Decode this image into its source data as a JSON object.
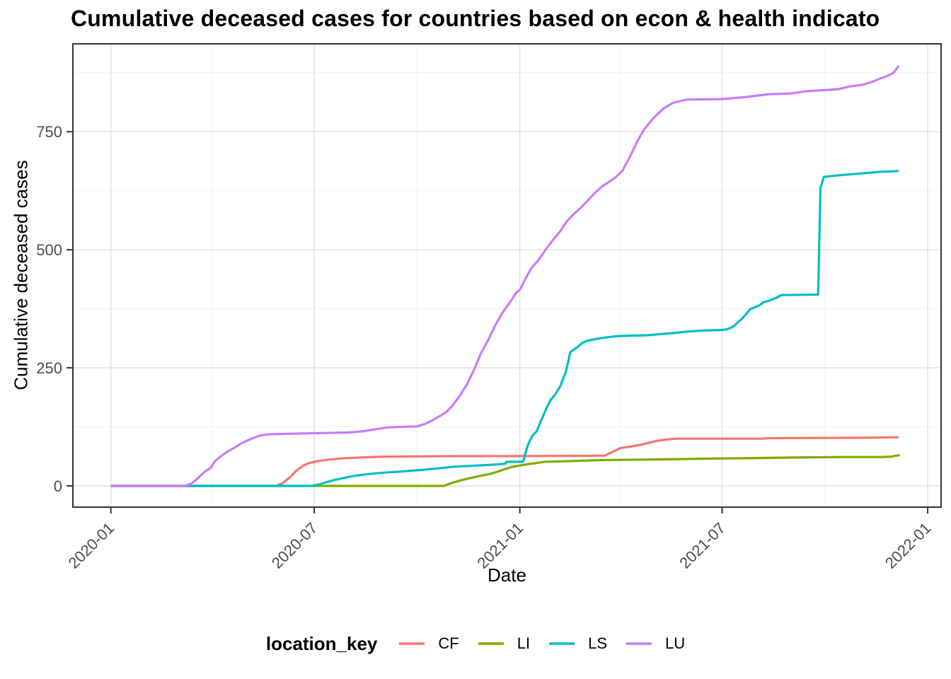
{
  "chart_data": {
    "type": "line",
    "title": "Cumulative deceased cases for countries based on econ & health indicato",
    "xlabel": "Date",
    "ylabel": "Cumulative deceased cases",
    "legend_title": "location_key",
    "legend_position": "bottom",
    "grid": true,
    "x_domain": [
      "2019-11-28",
      "2022-01-13"
    ],
    "y_domain": [
      -45,
      936
    ],
    "x_ticks": [
      {
        "date": "2020-01-01",
        "label": "2020-01"
      },
      {
        "date": "2020-07-01",
        "label": "2020-07"
      },
      {
        "date": "2021-01-01",
        "label": "2021-01"
      },
      {
        "date": "2021-07-01",
        "label": "2021-07"
      },
      {
        "date": "2022-01-01",
        "label": "2022-01"
      }
    ],
    "x_minor_dates": [
      "2020-04-01",
      "2020-10-01",
      "2021-04-01",
      "2021-10-01"
    ],
    "y_ticks": [
      0,
      250,
      500,
      750
    ],
    "y_minor": [
      125,
      375,
      625,
      875
    ],
    "colors": {
      "grid_major": "#e4e4e4",
      "grid_minor": "#f0f0f0",
      "panel_border": "#333333",
      "tick_label": "#4d4d4d"
    },
    "series": [
      {
        "name": "CF",
        "color": "#F8766D",
        "points": [
          [
            "2020-01-01",
            0
          ],
          [
            "2020-05-28",
            0
          ],
          [
            "2020-06-03",
            6
          ],
          [
            "2020-06-07",
            14
          ],
          [
            "2020-06-11",
            22
          ],
          [
            "2020-06-14",
            30
          ],
          [
            "2020-06-18",
            38
          ],
          [
            "2020-06-22",
            44
          ],
          [
            "2020-06-26",
            48
          ],
          [
            "2020-07-03",
            52
          ],
          [
            "2020-07-12",
            55
          ],
          [
            "2020-07-25",
            58
          ],
          [
            "2020-08-10",
            60
          ],
          [
            "2020-09-01",
            62
          ],
          [
            "2020-11-01",
            63
          ],
          [
            "2021-01-01",
            63
          ],
          [
            "2021-03-18",
            64
          ],
          [
            "2021-03-25",
            72
          ],
          [
            "2021-04-01",
            80
          ],
          [
            "2021-04-10",
            83
          ],
          [
            "2021-04-19",
            87
          ],
          [
            "2021-04-26",
            91
          ],
          [
            "2021-05-03",
            95
          ],
          [
            "2021-05-12",
            98
          ],
          [
            "2021-05-21",
            100
          ],
          [
            "2021-08-05",
            100
          ],
          [
            "2021-08-12",
            101
          ],
          [
            "2021-11-08",
            102
          ],
          [
            "2021-12-06",
            103
          ]
        ]
      },
      {
        "name": "LI",
        "color": "#7CAE00",
        "points": [
          [
            "2020-01-01",
            0
          ],
          [
            "2020-10-25",
            0
          ],
          [
            "2020-11-01",
            6
          ],
          [
            "2020-11-08",
            11
          ],
          [
            "2020-11-15",
            15
          ],
          [
            "2020-11-22",
            19
          ],
          [
            "2020-11-28",
            22
          ],
          [
            "2020-12-05",
            25
          ],
          [
            "2020-12-12",
            30
          ],
          [
            "2020-12-18",
            35
          ],
          [
            "2020-12-25",
            40
          ],
          [
            "2021-01-01",
            43
          ],
          [
            "2021-01-08",
            46
          ],
          [
            "2021-01-15",
            48
          ],
          [
            "2021-01-23",
            51
          ],
          [
            "2021-02-10",
            52
          ],
          [
            "2021-03-06",
            54
          ],
          [
            "2021-04-01",
            55
          ],
          [
            "2021-05-01",
            56
          ],
          [
            "2021-06-01",
            57
          ],
          [
            "2021-07-01",
            58
          ],
          [
            "2021-08-01",
            59
          ],
          [
            "2021-09-01",
            60
          ],
          [
            "2021-10-15",
            61
          ],
          [
            "2021-11-20",
            61
          ],
          [
            "2021-11-30",
            62
          ],
          [
            "2021-12-04",
            64
          ],
          [
            "2021-12-07",
            65
          ]
        ]
      },
      {
        "name": "LS",
        "color": "#00BFC4",
        "points": [
          [
            "2020-01-01",
            0
          ],
          [
            "2020-06-28",
            0
          ],
          [
            "2020-07-05",
            3
          ],
          [
            "2020-07-12",
            8
          ],
          [
            "2020-07-20",
            13
          ],
          [
            "2020-07-28",
            17
          ],
          [
            "2020-08-05",
            21
          ],
          [
            "2020-08-18",
            25
          ],
          [
            "2020-09-01",
            28
          ],
          [
            "2020-09-15",
            30
          ],
          [
            "2020-10-01",
            33
          ],
          [
            "2020-10-15",
            36
          ],
          [
            "2020-11-01",
            40
          ],
          [
            "2020-11-15",
            42
          ],
          [
            "2020-12-01",
            44
          ],
          [
            "2020-12-15",
            46
          ],
          [
            "2020-12-19",
            47
          ],
          [
            "2020-12-20",
            51
          ],
          [
            "2021-01-04",
            51
          ],
          [
            "2021-01-06",
            70
          ],
          [
            "2021-01-08",
            85
          ],
          [
            "2021-01-10",
            96
          ],
          [
            "2021-01-12",
            105
          ],
          [
            "2021-01-14",
            111
          ],
          [
            "2021-01-16",
            115
          ],
          [
            "2021-01-19",
            133
          ],
          [
            "2021-01-24",
            160
          ],
          [
            "2021-01-28",
            180
          ],
          [
            "2021-02-02",
            195
          ],
          [
            "2021-02-06",
            210
          ],
          [
            "2021-02-09",
            228
          ],
          [
            "2021-02-11",
            240
          ],
          [
            "2021-02-14",
            270
          ],
          [
            "2021-02-15",
            283
          ],
          [
            "2021-02-18",
            288
          ],
          [
            "2021-02-22",
            295
          ],
          [
            "2021-02-26",
            303
          ],
          [
            "2021-03-02",
            307
          ],
          [
            "2021-03-10",
            311
          ],
          [
            "2021-03-18",
            314
          ],
          [
            "2021-03-28",
            317
          ],
          [
            "2021-04-10",
            318
          ],
          [
            "2021-04-25",
            319
          ],
          [
            "2021-05-05",
            321
          ],
          [
            "2021-05-20",
            324
          ],
          [
            "2021-06-01",
            327
          ],
          [
            "2021-06-15",
            329
          ],
          [
            "2021-07-01",
            330
          ],
          [
            "2021-07-06",
            332
          ],
          [
            "2021-07-10",
            336
          ],
          [
            "2021-07-13",
            341
          ],
          [
            "2021-07-15",
            347
          ],
          [
            "2021-07-18",
            352
          ],
          [
            "2021-07-21",
            360
          ],
          [
            "2021-07-24",
            368
          ],
          [
            "2021-07-26",
            374
          ],
          [
            "2021-07-30",
            378
          ],
          [
            "2021-08-04",
            383
          ],
          [
            "2021-08-07",
            389
          ],
          [
            "2021-08-12",
            392
          ],
          [
            "2021-08-16",
            396
          ],
          [
            "2021-08-20",
            400
          ],
          [
            "2021-08-23",
            404
          ],
          [
            "2021-09-25",
            405
          ],
          [
            "2021-09-27",
            632
          ],
          [
            "2021-09-28",
            638
          ],
          [
            "2021-09-30",
            654
          ],
          [
            "2021-10-10",
            657
          ],
          [
            "2021-10-25",
            660
          ],
          [
            "2021-11-05",
            662
          ],
          [
            "2021-11-20",
            665
          ],
          [
            "2021-12-01",
            666
          ],
          [
            "2021-12-06",
            667
          ]
        ]
      },
      {
        "name": "LU",
        "color": "#C77CFF",
        "points": [
          [
            "2020-01-01",
            0
          ],
          [
            "2020-03-08",
            0
          ],
          [
            "2020-03-13",
            5
          ],
          [
            "2020-03-17",
            12
          ],
          [
            "2020-03-21",
            21
          ],
          [
            "2020-03-25",
            30
          ],
          [
            "2020-03-29",
            36
          ],
          [
            "2020-03-31",
            40
          ],
          [
            "2020-04-03",
            52
          ],
          [
            "2020-04-08",
            62
          ],
          [
            "2020-04-14",
            72
          ],
          [
            "2020-04-20",
            80
          ],
          [
            "2020-04-26",
            89
          ],
          [
            "2020-05-02",
            96
          ],
          [
            "2020-05-08",
            102
          ],
          [
            "2020-05-14",
            107
          ],
          [
            "2020-05-20",
            109
          ],
          [
            "2020-06-01",
            110
          ],
          [
            "2020-07-10",
            112
          ],
          [
            "2020-08-01",
            113
          ],
          [
            "2020-08-15",
            116
          ],
          [
            "2020-08-25",
            120
          ],
          [
            "2020-09-05",
            124
          ],
          [
            "2020-10-01",
            126
          ],
          [
            "2020-10-08",
            131
          ],
          [
            "2020-10-14",
            138
          ],
          [
            "2020-10-20",
            146
          ],
          [
            "2020-10-27",
            156
          ],
          [
            "2020-11-02",
            171
          ],
          [
            "2020-11-08",
            190
          ],
          [
            "2020-11-15",
            216
          ],
          [
            "2020-11-21",
            246
          ],
          [
            "2020-11-27",
            280
          ],
          [
            "2020-12-04",
            310
          ],
          [
            "2020-12-10",
            340
          ],
          [
            "2020-12-16",
            365
          ],
          [
            "2020-12-23",
            388
          ],
          [
            "2020-12-29",
            410
          ],
          [
            "2021-01-01",
            415
          ],
          [
            "2021-01-05",
            434
          ],
          [
            "2021-01-11",
            460
          ],
          [
            "2021-01-18",
            479
          ],
          [
            "2021-01-24",
            500
          ],
          [
            "2021-01-30",
            519
          ],
          [
            "2021-02-06",
            539
          ],
          [
            "2021-02-12",
            560
          ],
          [
            "2021-02-18",
            575
          ],
          [
            "2021-02-25",
            590
          ],
          [
            "2021-03-03",
            605
          ],
          [
            "2021-03-09",
            620
          ],
          [
            "2021-03-16",
            635
          ],
          [
            "2021-03-22",
            644
          ],
          [
            "2021-03-28",
            654
          ],
          [
            "2021-04-03",
            668
          ],
          [
            "2021-04-10",
            699
          ],
          [
            "2021-04-16",
            729
          ],
          [
            "2021-04-22",
            754
          ],
          [
            "2021-05-01",
            780
          ],
          [
            "2021-05-10",
            800
          ],
          [
            "2021-05-18",
            811
          ],
          [
            "2021-05-30",
            818
          ],
          [
            "2021-07-01",
            819
          ],
          [
            "2021-07-21",
            823
          ],
          [
            "2021-08-11",
            829
          ],
          [
            "2021-09-01",
            831
          ],
          [
            "2021-09-12",
            835
          ],
          [
            "2021-09-22",
            837
          ],
          [
            "2021-10-01",
            838
          ],
          [
            "2021-10-13",
            840
          ],
          [
            "2021-10-24",
            846
          ],
          [
            "2021-11-03",
            849
          ],
          [
            "2021-11-13",
            856
          ],
          [
            "2021-11-20",
            863
          ],
          [
            "2021-11-24",
            866
          ],
          [
            "2021-12-01",
            874
          ],
          [
            "2021-12-04",
            882
          ],
          [
            "2021-12-06",
            890
          ]
        ]
      }
    ]
  }
}
